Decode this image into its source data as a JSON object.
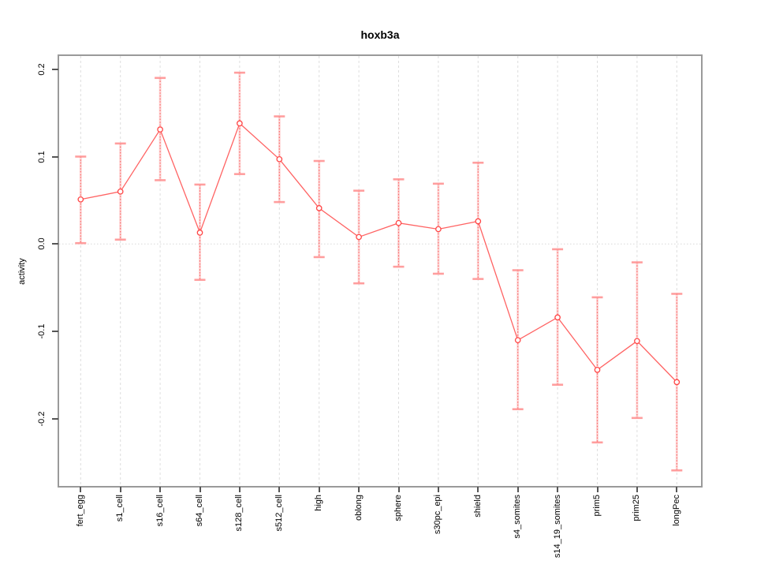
{
  "window": {
    "background": "#ffffff"
  },
  "chart_data": {
    "type": "line",
    "title": "hoxb3a",
    "xlabel": "",
    "ylabel": "activity",
    "legend_position": "none",
    "grid": {
      "vertical_dashed_per_category": true,
      "horizontal_dotted_at_zero": true
    },
    "ylim": [
      -0.277,
      0.215
    ],
    "yticks": [
      0.2,
      0.1,
      0.0,
      -0.1,
      -0.2
    ],
    "ytick_labels": [
      "0.2",
      "0.1",
      "0.0",
      "-0.1",
      "-0.2"
    ],
    "categories": [
      "fert_egg",
      "s1_cell",
      "s16_cell",
      "s64_cell",
      "s128_cell",
      "s512_cell",
      "high",
      "oblong",
      "sphere",
      "s30pc_epi",
      "shield",
      "s4_somites",
      "s14_19_somites",
      "prim5",
      "prim25",
      "longPec"
    ],
    "series": [
      {
        "name": "activity",
        "marker": "open-circle",
        "values": [
          0.051,
          0.06,
          0.131,
          0.013,
          0.138,
          0.097,
          0.041,
          0.008,
          0.024,
          0.017,
          0.026,
          -0.11,
          -0.084,
          -0.144,
          -0.111,
          -0.158
        ],
        "error_upper": [
          0.1,
          0.115,
          0.19,
          0.068,
          0.196,
          0.146,
          0.095,
          0.061,
          0.074,
          0.069,
          0.093,
          -0.03,
          -0.006,
          -0.061,
          -0.021,
          -0.057
        ],
        "error_lower": [
          0.001,
          0.005,
          0.073,
          -0.041,
          0.08,
          0.048,
          -0.015,
          -0.045,
          -0.026,
          -0.034,
          -0.04,
          -0.189,
          -0.161,
          -0.227,
          -0.199,
          -0.259
        ]
      }
    ],
    "colors": {
      "line": "#ff5252",
      "point_stroke": "#ff4646",
      "error_bar_dotted": "#ff5a5a",
      "error_bar_soft": "#ffaaaa",
      "error_cap": "#ff9494",
      "gridline": "#dedede",
      "zero_line": "#d8d8d8",
      "box_border": "#9a9a9a",
      "tick": "#555555",
      "text": "#000000"
    }
  }
}
